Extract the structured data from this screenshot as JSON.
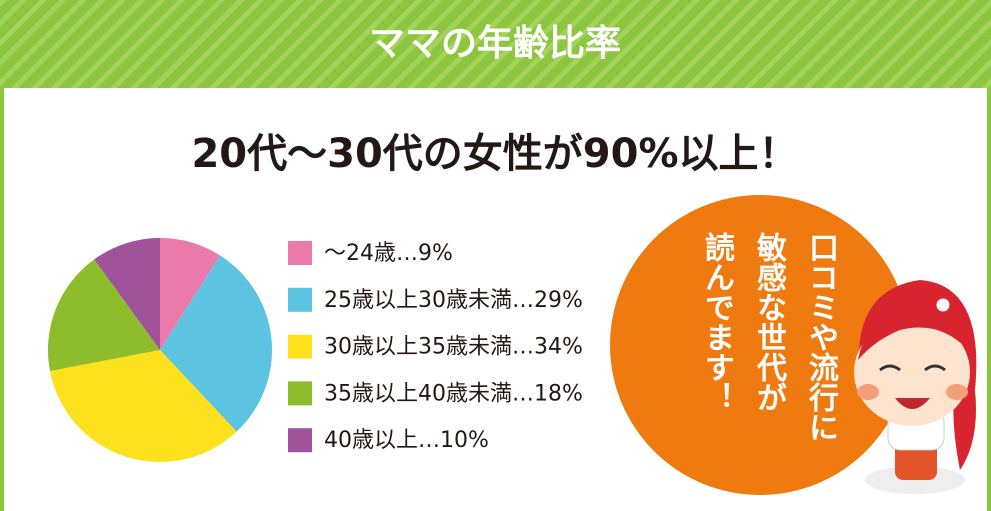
{
  "chart_data": {
    "type": "pie",
    "title": "ママの年齢比率",
    "subtitle": "20代〜30代の女性が90%以上！",
    "categories": [
      "〜24歳…9%",
      "25歳以上30歳未満…29%",
      "30歳以上35歳未満…34%",
      "35歳以上40歳未満…18%",
      "40歳以上…10%"
    ],
    "values": [
      9,
      29,
      34,
      18,
      10
    ],
    "colors": [
      "#ec79ab",
      "#5cc4e0",
      "#fde11c",
      "#8dbd2c",
      "#a0529a"
    ],
    "annotation": [
      "口コミや流行に",
      "敏感な世代が",
      "読んでます！"
    ]
  }
}
